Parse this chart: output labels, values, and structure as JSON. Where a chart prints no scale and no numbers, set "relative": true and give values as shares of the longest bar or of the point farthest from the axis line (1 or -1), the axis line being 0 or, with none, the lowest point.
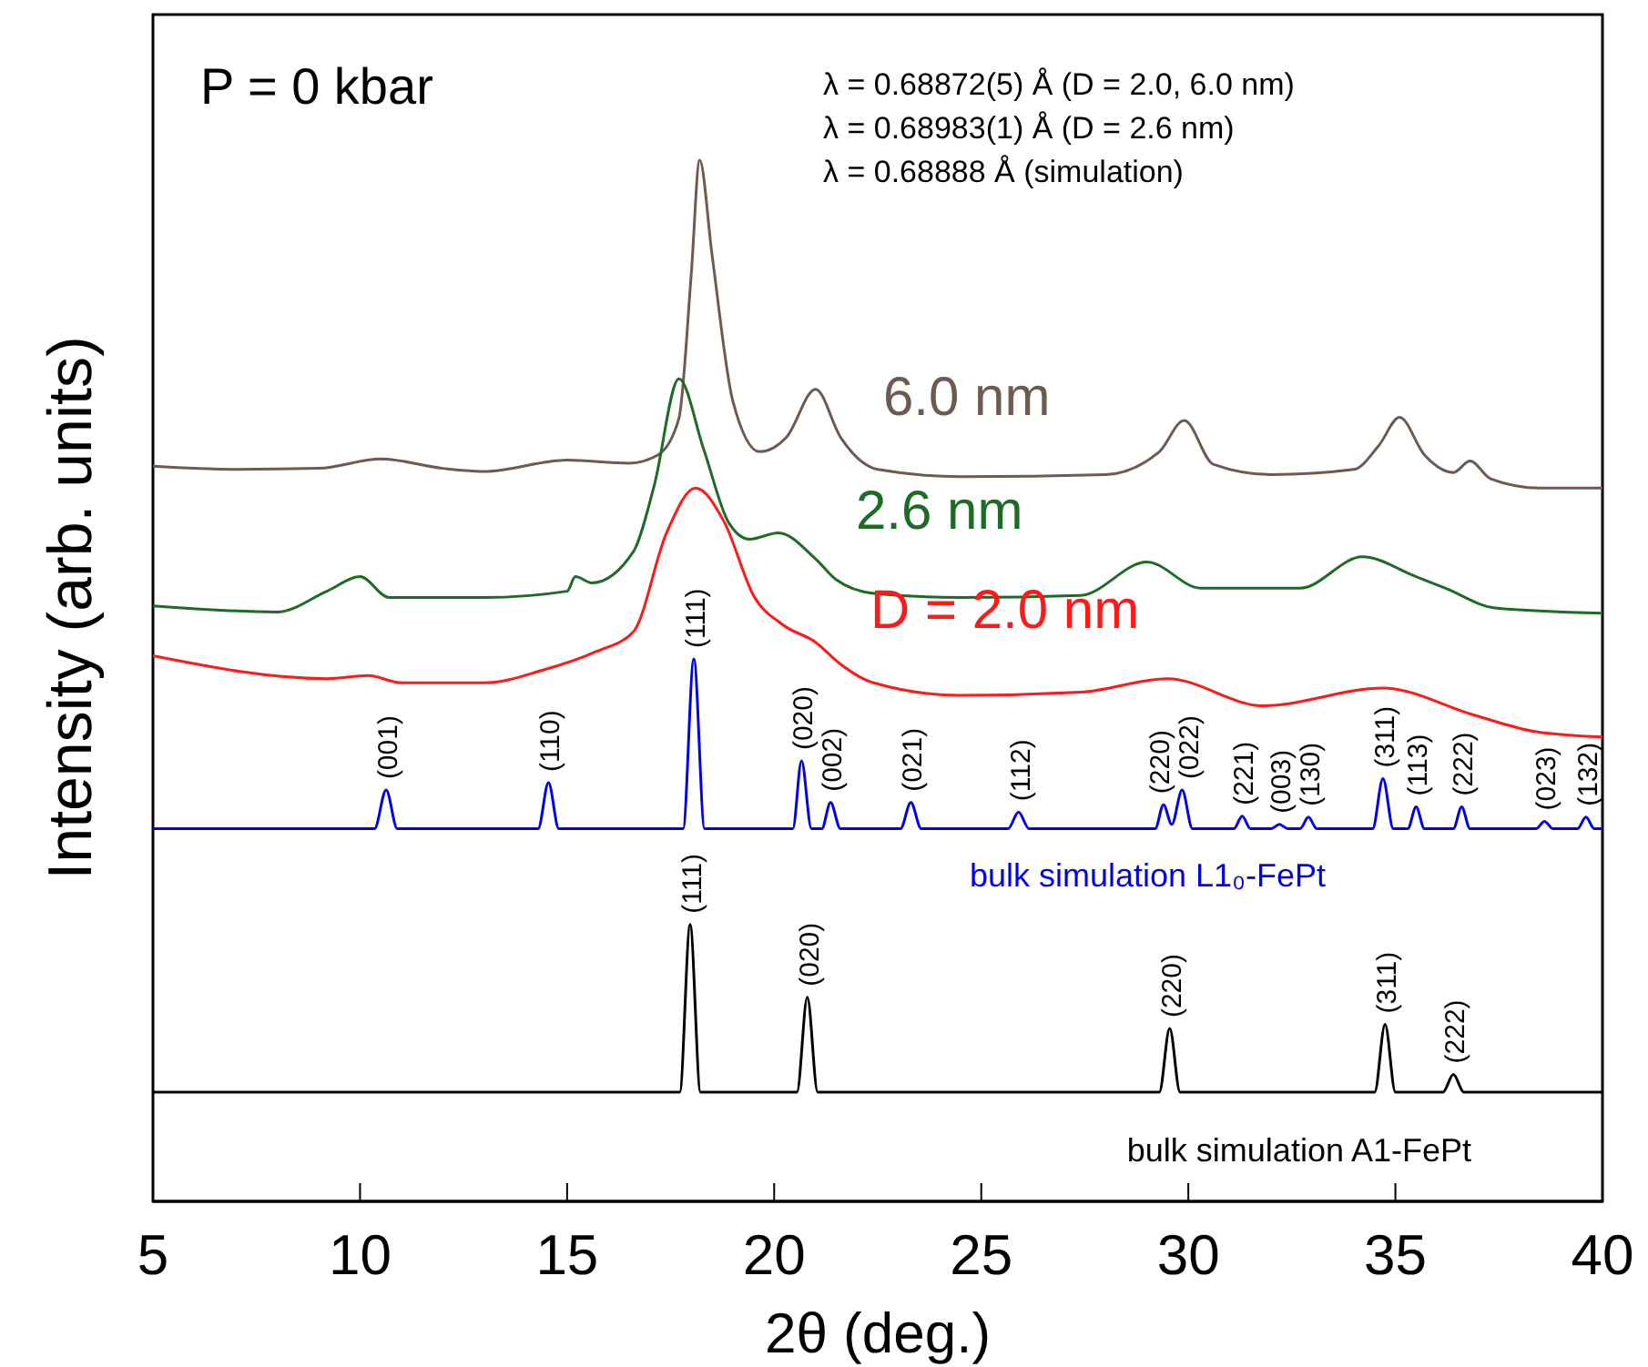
{
  "chart_data": {
    "type": "line",
    "relative": true,
    "xlabel": "2θ (deg.)",
    "ylabel": "Intensity (arb. units)",
    "xlim": [
      5,
      40
    ],
    "xticks": [
      5,
      10,
      15,
      20,
      25,
      30,
      35,
      40
    ],
    "grid": false,
    "marker": "none",
    "line_style": "solid",
    "series": [
      {
        "name": "6.0 nm",
        "color": "#6e5a50",
        "x": [
          5,
          7,
          9,
          10.5,
          12,
          13,
          15,
          16.5,
          17.2,
          17.7,
          18,
          18.2,
          18.5,
          19,
          19.65,
          20.3,
          21,
          21.6,
          22.5,
          24.5,
          28,
          29.3,
          29.9,
          30.6,
          32,
          34,
          34.6,
          35.1,
          35.7,
          36.4,
          36.8,
          37.3,
          38.5,
          40
        ],
        "values": [
          0.706,
          0.703,
          0.704,
          0.713,
          0.704,
          0.701,
          0.712,
          0.709,
          0.717,
          0.752,
          0.892,
          1.0,
          0.909,
          0.769,
          0.72,
          0.734,
          0.78,
          0.734,
          0.703,
          0.696,
          0.698,
          0.72,
          0.75,
          0.708,
          0.698,
          0.703,
          0.726,
          0.753,
          0.717,
          0.7,
          0.711,
          0.694,
          0.685,
          0.685
        ]
      },
      {
        "name": "2.6 nm",
        "color": "#1e6b28",
        "x": [
          5,
          8,
          9.2,
          10,
          10.7,
          13,
          15,
          15.2,
          15.6,
          16.6,
          17.1,
          17.7,
          18.3,
          18.9,
          19.4,
          20.1,
          21,
          21.5,
          22.4,
          24.5,
          27.4,
          29,
          30.3,
          32.7,
          34.2,
          35.5,
          36.2,
          37.4,
          40
        ],
        "values": [
          0.572,
          0.566,
          0.586,
          0.6,
          0.58,
          0.58,
          0.586,
          0.6,
          0.594,
          0.624,
          0.687,
          0.79,
          0.722,
          0.652,
          0.636,
          0.642,
          0.617,
          0.597,
          0.584,
          0.58,
          0.582,
          0.614,
          0.589,
          0.589,
          0.619,
          0.6,
          0.589,
          0.57,
          0.565
        ]
      },
      {
        "name": "D = 2.0 nm",
        "color": "#ff1a1a",
        "x": [
          5,
          9.2,
          10.2,
          11,
          13,
          14.4,
          15.7,
          16.6,
          17.4,
          18.1,
          18.8,
          19.5,
          20.2,
          21,
          21.6,
          22.4,
          24.5,
          27.4,
          29.5,
          31.8,
          34.7,
          36.9,
          38.4,
          40
        ],
        "values": [
          0.524,
          0.502,
          0.505,
          0.498,
          0.498,
          0.51,
          0.528,
          0.547,
          0.642,
          0.685,
          0.652,
          0.582,
          0.554,
          0.537,
          0.516,
          0.498,
          0.486,
          0.489,
          0.502,
          0.476,
          0.493,
          0.467,
          0.451,
          0.446
        ]
      },
      {
        "name": "bulk simulation L1₀-FePt",
        "color": "#0000ee",
        "x": [
          5,
          10.35,
          10.63,
          10.9,
          14.3,
          14.55,
          14.8,
          17.8,
          18.06,
          18.32,
          20.45,
          20.66,
          20.9,
          21.15,
          21.36,
          21.6,
          23.05,
          23.3,
          23.55,
          25.65,
          25.9,
          26.15,
          29.2,
          29.4,
          29.6,
          29.85,
          30.1,
          31.1,
          31.3,
          31.5,
          32.0,
          32.2,
          32.4,
          32.7,
          32.9,
          33.1,
          34.45,
          34.7,
          34.95,
          35.3,
          35.5,
          35.7,
          36.4,
          36.6,
          36.8,
          38.4,
          38.6,
          38.8,
          39.4,
          39.6,
          39.8,
          40
        ],
        "values": [
          0.358,
          0.358,
          0.395,
          0.358,
          0.358,
          0.402,
          0.358,
          0.358,
          0.521,
          0.358,
          0.358,
          0.423,
          0.358,
          0.358,
          0.383,
          0.358,
          0.358,
          0.383,
          0.358,
          0.358,
          0.374,
          0.358,
          0.358,
          0.381,
          0.362,
          0.395,
          0.358,
          0.358,
          0.37,
          0.358,
          0.358,
          0.362,
          0.358,
          0.358,
          0.369,
          0.358,
          0.358,
          0.406,
          0.358,
          0.358,
          0.379,
          0.358,
          0.358,
          0.379,
          0.358,
          0.358,
          0.365,
          0.358,
          0.358,
          0.369,
          0.358,
          0.358
        ]
      },
      {
        "name": "bulk simulation A1-FePt",
        "color": "#000000",
        "x": [
          5,
          17.72,
          17.97,
          18.22,
          20.55,
          20.8,
          21.05,
          29.3,
          29.55,
          29.8,
          34.5,
          34.75,
          35.0,
          36.15,
          36.4,
          36.65,
          40
        ],
        "values": [
          0.105,
          0.105,
          0.266,
          0.105,
          0.105,
          0.196,
          0.105,
          0.105,
          0.166,
          0.105,
          0.105,
          0.17,
          0.105,
          0.105,
          0.122,
          0.105,
          0.105
        ]
      }
    ],
    "annotations": [
      "P = 0 kbar",
      "λ = 0.68872(5) Å  (D = 2.0, 6.0 nm)",
      "λ = 0.68983(1) Å  (D = 2.6 nm)",
      "λ = 0.68888 Å  (simulation)",
      {
        "text": "(001)",
        "x": 10.63,
        "y": 0.395
      },
      {
        "text": "(110)",
        "x": 14.55,
        "y": 0.402
      },
      {
        "text": "(111)",
        "x": 18.06,
        "y": 0.521
      },
      {
        "text": "(020)",
        "x": 20.66,
        "y": 0.423
      },
      {
        "text": "(002)",
        "x": 21.36,
        "y": 0.383
      },
      {
        "text": "(021)",
        "x": 23.3,
        "y": 0.383
      },
      {
        "text": "(112)",
        "x": 25.9,
        "y": 0.374
      },
      {
        "text": "(220)",
        "x": 29.4,
        "y": 0.381
      },
      {
        "text": "(022)",
        "x": 29.85,
        "y": 0.395
      },
      {
        "text": "(221)",
        "x": 31.3,
        "y": 0.37
      },
      {
        "text": "(003)",
        "x": 32.2,
        "y": 0.362
      },
      {
        "text": "(130)",
        "x": 32.9,
        "y": 0.369
      },
      {
        "text": "(311)",
        "x": 34.7,
        "y": 0.406
      },
      {
        "text": "(113)",
        "x": 35.5,
        "y": 0.379
      },
      {
        "text": "(222)",
        "x": 36.6,
        "y": 0.379
      },
      {
        "text": "(023)",
        "x": 38.6,
        "y": 0.365
      },
      {
        "text": "(132)",
        "x": 39.6,
        "y": 0.369
      },
      {
        "text": "(111)",
        "x": 17.97,
        "y": 0.266
      },
      {
        "text": "(020)",
        "x": 20.8,
        "y": 0.196
      },
      {
        "text": "(220)",
        "x": 29.55,
        "y": 0.166
      },
      {
        "text": "(311)",
        "x": 34.75,
        "y": 0.17
      },
      {
        "text": "(222)",
        "x": 36.4,
        "y": 0.122
      }
    ]
  }
}
